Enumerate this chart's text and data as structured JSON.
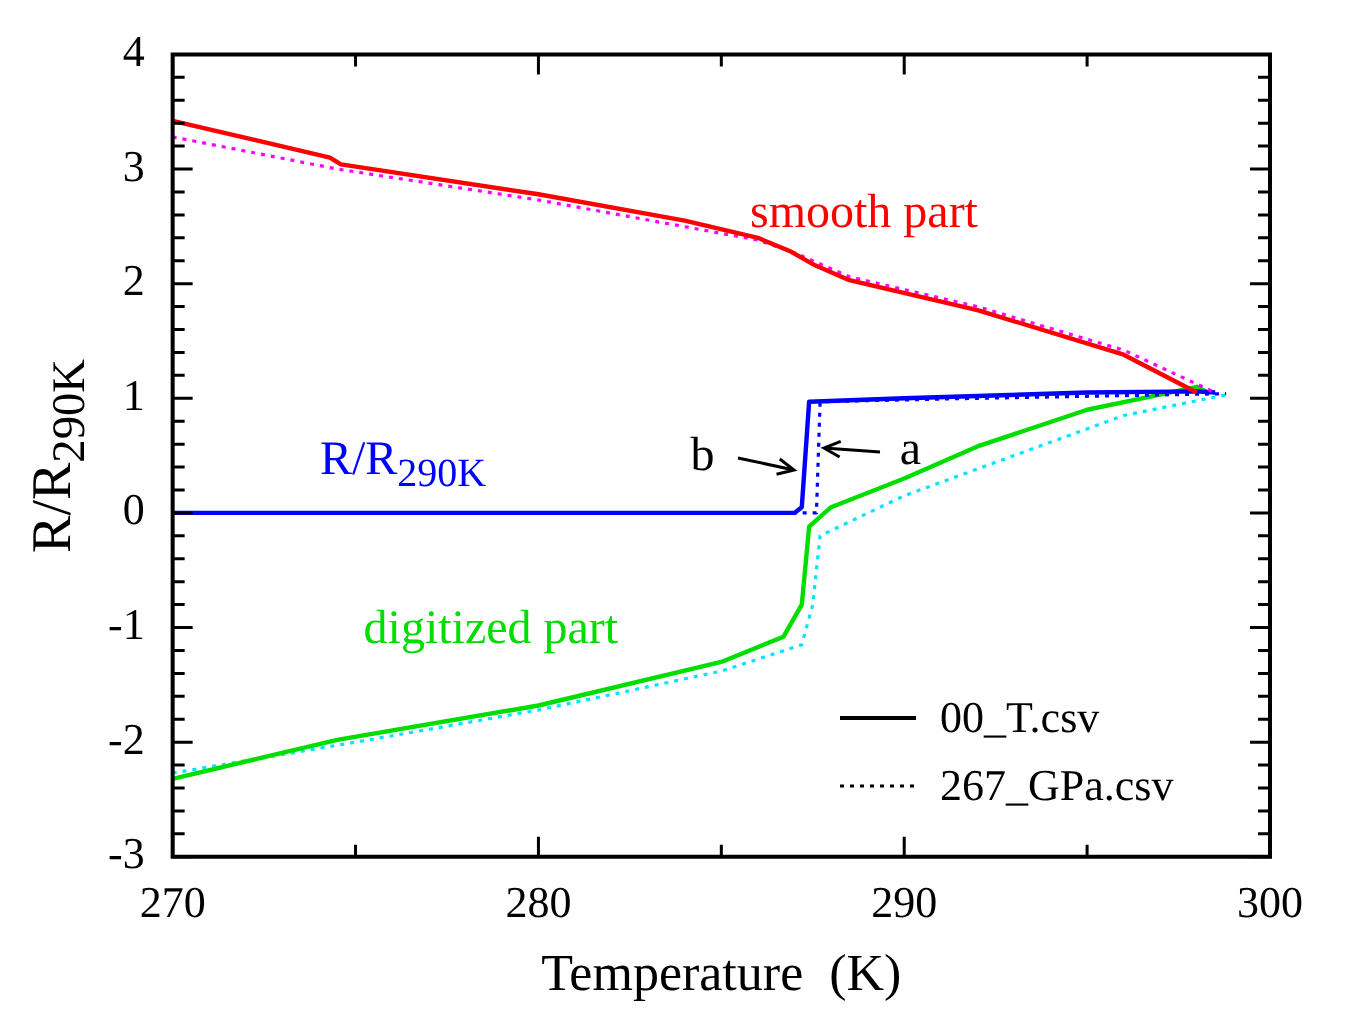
{
  "chart_data": {
    "type": "line",
    "xlabel": "Temperature  (K)",
    "ylabel": "R/R$_{290K}$",
    "xlim": [
      270,
      300
    ],
    "ylim": [
      -3,
      4
    ],
    "xticks": [
      270,
      {
        "value": 275,
        "label": null
      },
      280,
      {
        "value": 285,
        "label": null
      },
      290,
      {
        "value": 295,
        "label": null
      },
      300
    ],
    "yticks": [
      -3,
      {
        "value": -2.8,
        "label": null
      },
      {
        "value": -2.6,
        "label": null
      },
      {
        "value": -2.4,
        "label": null
      },
      {
        "value": -2.2,
        "label": null
      },
      -2,
      {
        "value": -1.8,
        "label": null
      },
      {
        "value": -1.6,
        "label": null
      },
      {
        "value": -1.4,
        "label": null
      },
      {
        "value": -1.2,
        "label": null
      },
      -1,
      {
        "value": -0.8,
        "label": null
      },
      {
        "value": -0.6,
        "label": null
      },
      {
        "value": -0.4,
        "label": null
      },
      {
        "value": -0.2,
        "label": null
      },
      0,
      {
        "value": 0.2,
        "label": null
      },
      {
        "value": 0.4,
        "label": null
      },
      {
        "value": 0.6,
        "label": null
      },
      {
        "value": 0.8,
        "label": null
      },
      1,
      {
        "value": 1.2,
        "label": null
      },
      {
        "value": 1.4,
        "label": null
      },
      {
        "value": 1.6,
        "label": null
      },
      {
        "value": 1.8,
        "label": null
      },
      2,
      {
        "value": 2.2,
        "label": null
      },
      {
        "value": 2.4,
        "label": null
      },
      {
        "value": 2.6,
        "label": null
      },
      {
        "value": 2.8,
        "label": null
      },
      3,
      {
        "value": 3.2,
        "label": null
      },
      {
        "value": 3.4,
        "label": null
      },
      {
        "value": 3.6,
        "label": null
      },
      {
        "value": 3.8,
        "label": null
      },
      4
    ],
    "grid": false,
    "marker": "none",
    "series": [
      {
        "name": "smooth part",
        "color": "#ff0000",
        "line_style": "solid",
        "x": [
          270,
          274.3,
          274.6,
          280,
          284,
          286,
          286.9,
          287.5,
          288.5,
          292,
          296,
          298
        ],
        "values": [
          3.42,
          3.1,
          3.04,
          2.78,
          2.55,
          2.4,
          2.28,
          2.17,
          2.03,
          1.77,
          1.38,
          1.05
        ]
      },
      {
        "color": "#ff00ff",
        "line_style": "dotted",
        "x": [
          270,
          274.5,
          280,
          286,
          287,
          288.5,
          292,
          296,
          298.5
        ],
        "values": [
          3.28,
          3.0,
          2.73,
          2.38,
          2.27,
          2.06,
          1.8,
          1.42,
          1.05
        ]
      },
      {
        "name": "R/R$_{290K}$",
        "color": "#0000ff",
        "line_style": "solid",
        "x": [
          270,
          280,
          287,
          287.2,
          287.4,
          290,
          295,
          298,
          298.5
        ],
        "values": [
          0,
          0,
          0,
          0.05,
          0.97,
          1.0,
          1.05,
          1.06,
          1.05
        ]
      },
      {
        "color": "#0000ff",
        "line_style": "dotted",
        "x": [
          270,
          280,
          287.6,
          287.7,
          292,
          298.8
        ],
        "values": [
          0,
          0,
          0,
          0.97,
          1.0,
          1.04
        ]
      },
      {
        "name": "digitized part",
        "color": "#00dd00",
        "line_style": "solid",
        "x": [
          270,
          274.5,
          280,
          285,
          286.7,
          287.2,
          287.4,
          288,
          290,
          292,
          295,
          296.5,
          298,
          298.3
        ],
        "values": [
          -2.32,
          -1.98,
          -1.68,
          -1.3,
          -1.08,
          -0.8,
          -0.12,
          0.05,
          0.3,
          0.58,
          0.9,
          1.0,
          1.1,
          1.05
        ]
      },
      {
        "color": "#00e5ff",
        "line_style": "dotted",
        "x": [
          270,
          275,
          280,
          285,
          287.2,
          287.5,
          287.7,
          290,
          293,
          296,
          298.8
        ],
        "values": [
          -2.27,
          -2.0,
          -1.72,
          -1.38,
          -1.15,
          -0.8,
          -0.2,
          0.15,
          0.5,
          0.85,
          1.03
        ]
      }
    ],
    "annotations": [
      {
        "text": "b",
        "x": 287.0,
        "y": 0.38
      },
      {
        "text": "a",
        "x": 287.8,
        "y": 0.56
      },
      "00_T.csv",
      "267_GPa.csv"
    ]
  }
}
